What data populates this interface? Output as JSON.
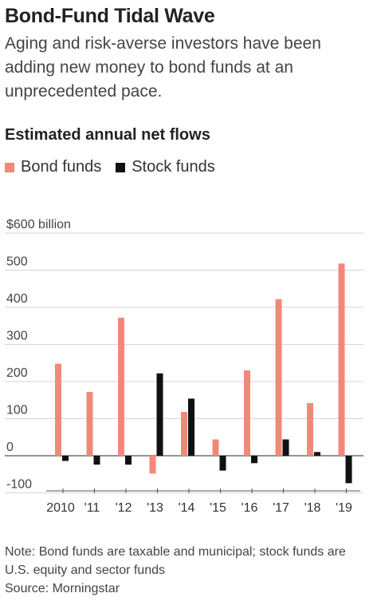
{
  "header": {
    "title": "Bond-Fund Tidal Wave",
    "subtitle": "Aging and risk-averse investors have been adding new money to bond funds at an unprecedented pace.",
    "section_title": "Estimated annual net flows"
  },
  "legend": [
    {
      "label": "Bond funds",
      "color": "#f08a78"
    },
    {
      "label": "Stock funds",
      "color": "#111111"
    }
  ],
  "chart_data": {
    "type": "bar",
    "categories": [
      "2010",
      "'11",
      "'12",
      "'13",
      "'14",
      "'15",
      "'16",
      "'17",
      "'18",
      "'19"
    ],
    "series": [
      {
        "name": "Bond funds",
        "color": "#f08a78",
        "values": [
          248,
          172,
          372,
          -48,
          118,
          44,
          230,
          422,
          142,
          518
        ]
      },
      {
        "name": "Stock funds",
        "color": "#111111",
        "values": [
          -14,
          -24,
          -24,
          222,
          154,
          -40,
          -20,
          44,
          10,
          -74
        ]
      }
    ],
    "ylabel": "$600 billion",
    "y_ticks": [
      {
        "value": 600,
        "label": "$600 billion"
      },
      {
        "value": 500,
        "label": "500"
      },
      {
        "value": 400,
        "label": "400"
      },
      {
        "value": 300,
        "label": "300"
      },
      {
        "value": 200,
        "label": "200"
      },
      {
        "value": 100,
        "label": "100"
      },
      {
        "value": 0,
        "label": "0"
      },
      {
        "value": -100,
        "label": "-100"
      }
    ],
    "ylim": [
      -100,
      600
    ],
    "grid": true,
    "legend_position": "top-left"
  },
  "footer": {
    "note": "Note: Bond funds are taxable and municipal; stock funds are U.S. equity and sector funds",
    "source": "Source: Morningstar"
  }
}
